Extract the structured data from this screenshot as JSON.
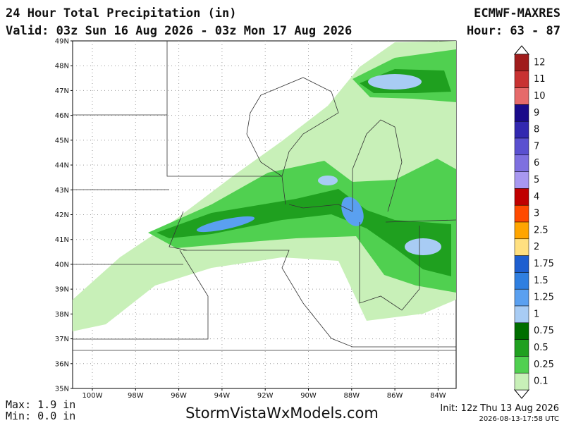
{
  "header": {
    "title": "24 Hour Total Precipitation (in)",
    "model": "ECMWF-MAXRES",
    "valid": "Valid: 03z Sun 16 Aug 2026 - 03z Mon 17 Aug 2026",
    "hour": "Hour: 63 - 87"
  },
  "map": {
    "lat_labels": [
      "49N",
      "48N",
      "47N",
      "46N",
      "45N",
      "44N",
      "43N",
      "42N",
      "41N",
      "40N",
      "39N",
      "38N",
      "37N",
      "36N",
      "35N"
    ],
    "lon_labels": [
      "100W",
      "98W",
      "96W",
      "94W",
      "92W",
      "90W",
      "88W",
      "86W",
      "84W"
    ]
  },
  "legend": {
    "levels": [
      {
        "label": "12",
        "color": "#a01c1c"
      },
      {
        "label": "11",
        "color": "#c83232"
      },
      {
        "label": "10",
        "color": "#e66a6a"
      },
      {
        "label": "9",
        "color": "#1a0a8a"
      },
      {
        "label": "8",
        "color": "#3228b0"
      },
      {
        "label": "7",
        "color": "#5a50d0"
      },
      {
        "label": "6",
        "color": "#7e70e0"
      },
      {
        "label": "5",
        "color": "#a898f0"
      },
      {
        "label": "4",
        "color": "#c00000"
      },
      {
        "label": "3",
        "color": "#ff4a00"
      },
      {
        "label": "2.5",
        "color": "#ffa500"
      },
      {
        "label": "2",
        "color": "#ffe080"
      },
      {
        "label": "1.75",
        "color": "#1e5fd0"
      },
      {
        "label": "1.5",
        "color": "#2f7fe0"
      },
      {
        "label": "1.25",
        "color": "#5aa0f0"
      },
      {
        "label": "1",
        "color": "#a8ccf4"
      },
      {
        "label": "0.75",
        "color": "#006e00"
      },
      {
        "label": "0.5",
        "color": "#1fa01f"
      },
      {
        "label": "0.25",
        "color": "#50d050"
      },
      {
        "label": "0.1",
        "color": "#c8f0b8"
      }
    ]
  },
  "footer": {
    "max": "Max: 1.9 in",
    "min": "Min: 0.0 in",
    "site": "StormVistaWxModels.com",
    "init": "Init: 12z Thu 13 Aug 2026",
    "timestamp": "2026-08-13-17:58 UTC"
  }
}
